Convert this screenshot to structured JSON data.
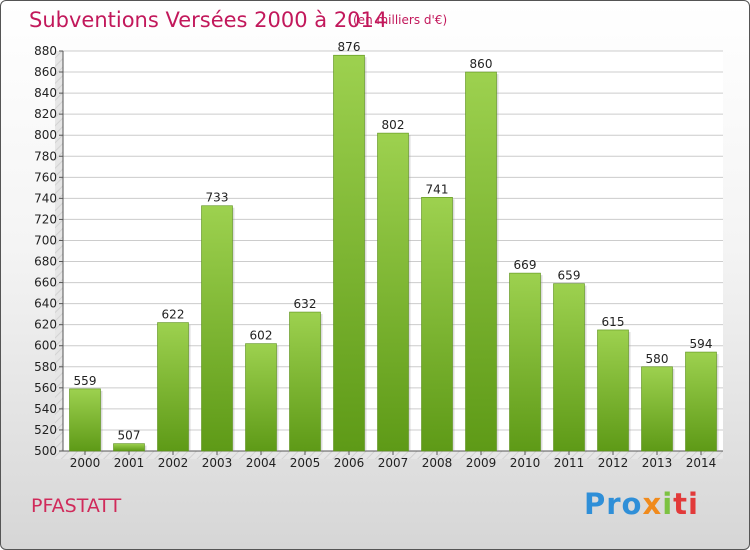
{
  "header": {
    "title": "Subventions Versées 2000 à 2014",
    "subtitle": "(en milliers d'€)"
  },
  "commune": "PFASTATT",
  "logo": {
    "text": "Proxiti",
    "parts": [
      "Pro",
      "x",
      "i",
      "ti"
    ]
  },
  "colors": {
    "title": "#c2185b",
    "bar_top": "#9dd14f",
    "bar_bottom": "#5e9a17",
    "logo_blue": "#2f8fd8",
    "logo_orange": "#f08a1c",
    "logo_green": "#7cc242",
    "logo_red": "#e23a3a"
  },
  "chart_data": {
    "type": "bar",
    "title": "Subventions Versées 2000 à 2014",
    "subtitle": "(en milliers d'€)",
    "xlabel": "",
    "ylabel": "",
    "categories": [
      "2000",
      "2001",
      "2002",
      "2003",
      "2004",
      "2005",
      "2006",
      "2007",
      "2008",
      "2009",
      "2010",
      "2011",
      "2012",
      "2013",
      "2014"
    ],
    "values": [
      559,
      507,
      622,
      733,
      602,
      632,
      876,
      802,
      741,
      860,
      669,
      659,
      615,
      580,
      594
    ],
    "ylim": [
      500,
      880
    ],
    "yticks": [
      500,
      520,
      540,
      560,
      580,
      600,
      620,
      640,
      660,
      680,
      700,
      720,
      740,
      760,
      780,
      800,
      820,
      840,
      860,
      880
    ],
    "grid": true,
    "legend": "none"
  }
}
